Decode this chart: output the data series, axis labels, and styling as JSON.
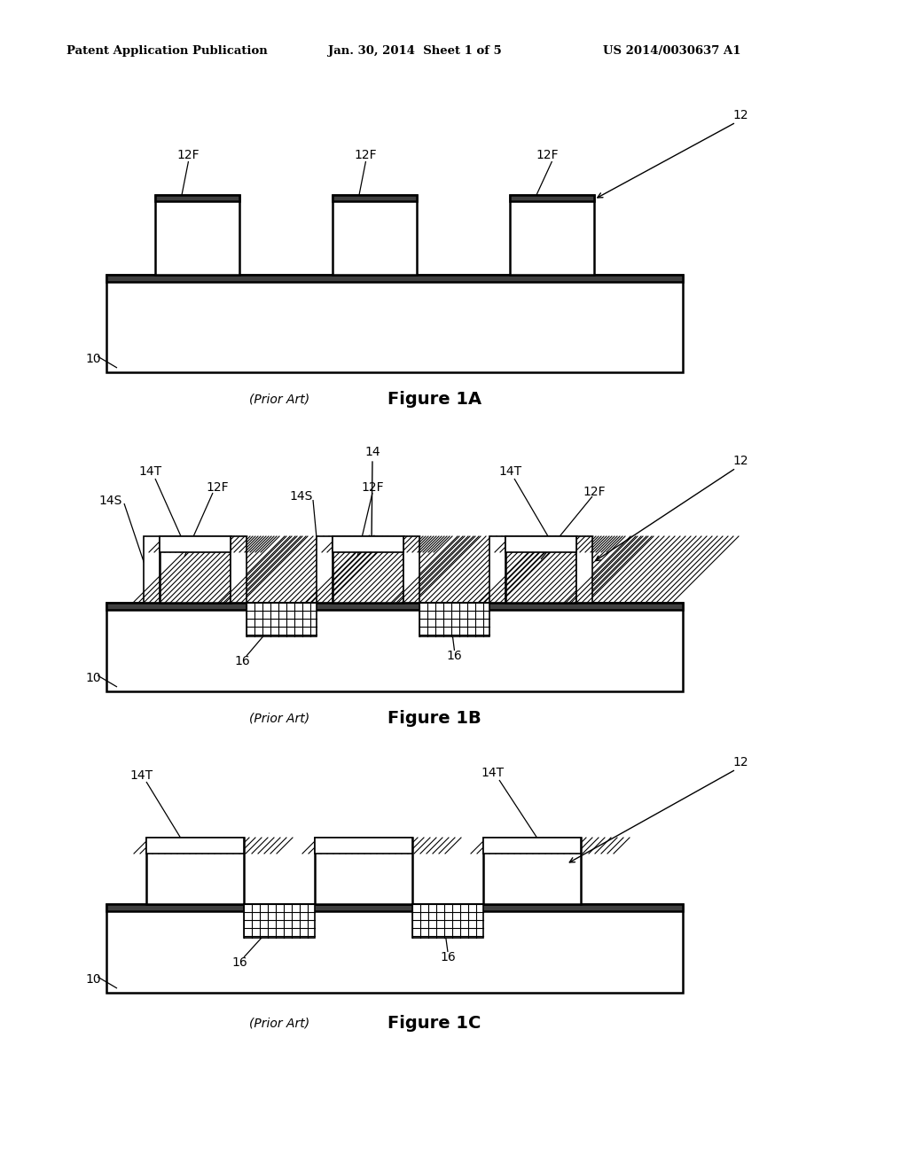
{
  "header_left": "Patent Application Publication",
  "header_mid": "Jan. 30, 2014  Sheet 1 of 5",
  "header_right": "US 2014/0030637 A1",
  "bg_color": "#ffffff",
  "line_color": "#000000"
}
